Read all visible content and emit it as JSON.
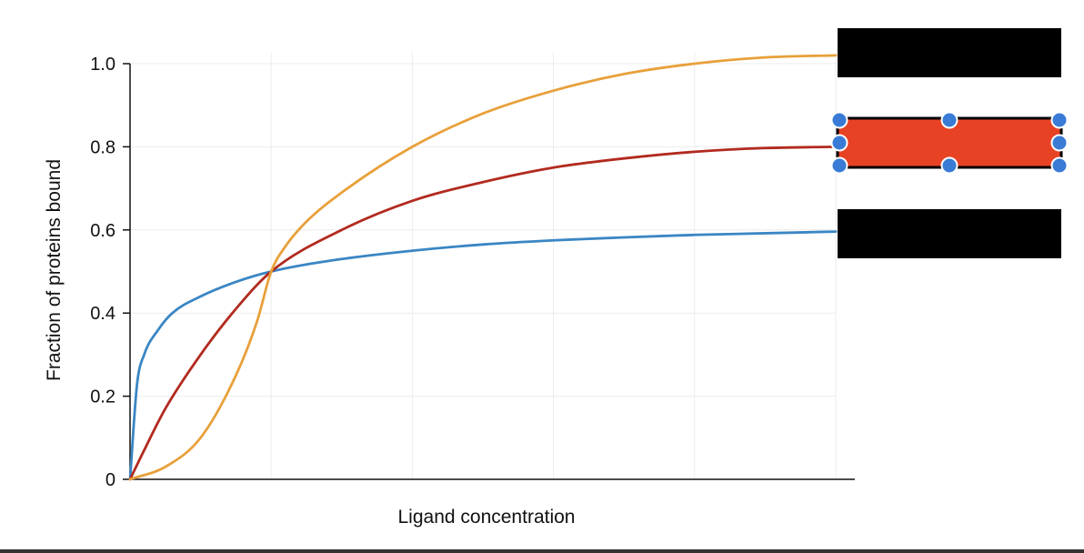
{
  "chart_data": {
    "type": "line",
    "title": "",
    "xlabel": "Ligand concentration",
    "ylabel": "Fraction of proteins bound",
    "xlim": [
      0,
      5
    ],
    "ylim": [
      0,
      1.0
    ],
    "x_tick_labels_shown": false,
    "y_ticks": [
      {
        "value": 0,
        "label": "0"
      },
      {
        "value": 0.2,
        "label": "0.2"
      },
      {
        "value": 0.4,
        "label": "0.4"
      },
      {
        "value": 0.6,
        "label": "0.6"
      },
      {
        "value": 0.8,
        "label": "0.8"
      },
      {
        "value": 1.0,
        "label": "1.0"
      }
    ],
    "x_gridlines": [
      0,
      1,
      2,
      3,
      4,
      5
    ],
    "grid": true,
    "series": [
      {
        "color": "#3a86c4",
        "x": [
          0,
          0.05,
          0.1,
          0.2,
          0.3,
          0.5,
          0.75,
          1,
          1.5,
          2,
          2.5,
          3,
          3.5,
          4,
          4.5,
          5
        ],
        "values": [
          0,
          0.23,
          0.3,
          0.36,
          0.4,
          0.44,
          0.475,
          0.5,
          0.53,
          0.55,
          0.565,
          0.575,
          0.582,
          0.588,
          0.592,
          0.596
        ]
      },
      {
        "color": "#b22a1f",
        "x": [
          0,
          0.1,
          0.25,
          0.5,
          0.75,
          1,
          1.5,
          2,
          2.5,
          3,
          3.5,
          4,
          4.5,
          5
        ],
        "values": [
          0,
          0.07,
          0.17,
          0.3,
          0.41,
          0.5,
          0.6,
          0.67,
          0.715,
          0.75,
          0.772,
          0.788,
          0.797,
          0.8
        ]
      },
      {
        "color": "#e8a03a",
        "x": [
          0,
          0.25,
          0.5,
          0.75,
          0.9,
          1,
          1.1,
          1.25,
          1.5,
          2,
          2.5,
          3,
          3.5,
          4,
          4.5,
          5
        ],
        "values": [
          0,
          0.03,
          0.1,
          0.25,
          0.38,
          0.5,
          0.56,
          0.62,
          0.69,
          0.8,
          0.88,
          0.935,
          0.975,
          1.0,
          1.015,
          1.02
        ]
      }
    ],
    "legend_boxes": [
      {
        "fill": "#000000",
        "selected": false
      },
      {
        "fill": "#e84225",
        "selected": true
      },
      {
        "fill": "#000000",
        "selected": false
      }
    ],
    "handle_color": "#3a7bd5"
  }
}
